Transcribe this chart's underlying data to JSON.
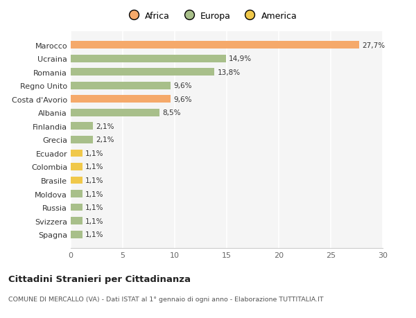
{
  "categories": [
    "Spagna",
    "Svizzera",
    "Russia",
    "Moldova",
    "Brasile",
    "Colombia",
    "Ecuador",
    "Grecia",
    "Finlandia",
    "Albania",
    "Costa d'Avorio",
    "Regno Unito",
    "Romania",
    "Ucraina",
    "Marocco"
  ],
  "values": [
    1.1,
    1.1,
    1.1,
    1.1,
    1.1,
    1.1,
    1.1,
    2.1,
    2.1,
    8.5,
    9.6,
    9.6,
    13.8,
    14.9,
    27.7
  ],
  "labels": [
    "1,1%",
    "1,1%",
    "1,1%",
    "1,1%",
    "1,1%",
    "1,1%",
    "1,1%",
    "2,1%",
    "2,1%",
    "8,5%",
    "9,6%",
    "9,6%",
    "13,8%",
    "14,9%",
    "27,7%"
  ],
  "continents": [
    "Europa",
    "Europa",
    "Europa",
    "Europa",
    "America",
    "America",
    "America",
    "Europa",
    "Europa",
    "Europa",
    "Africa",
    "Europa",
    "Europa",
    "Europa",
    "Africa"
  ],
  "colors": {
    "Africa": "#F5A96A",
    "Europa": "#A8BF8A",
    "America": "#F0C84A"
  },
  "background_color": "#FFFFFF",
  "plot_background": "#F5F5F5",
  "title": "Cittadini Stranieri per Cittadinanza",
  "subtitle": "COMUNE DI MERCALLO (VA) - Dati ISTAT al 1° gennaio di ogni anno - Elaborazione TUTTITALIA.IT",
  "xlim": [
    0,
    30
  ],
  "xticks": [
    0,
    5,
    10,
    15,
    20,
    25,
    30
  ],
  "legend_labels": [
    "Africa",
    "Europa",
    "America"
  ],
  "legend_colors": [
    "#F5A96A",
    "#A8BF8A",
    "#F0C84A"
  ]
}
